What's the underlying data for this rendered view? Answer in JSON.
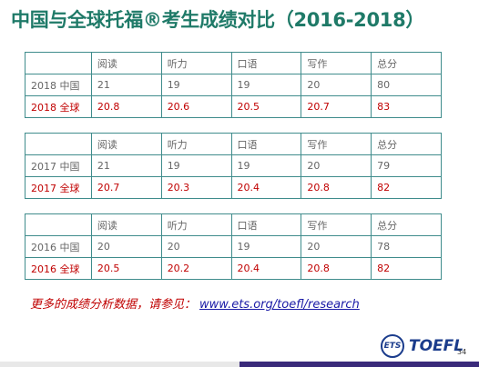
{
  "title": "中国与全球托福®考生成绩对比（2016-2018）",
  "tables": [
    {
      "header": [
        "阅读",
        "听力",
        "口语",
        "写作",
        "总分"
      ],
      "rows": [
        [
          "2018 中国",
          "21",
          "19",
          "19",
          "20",
          "80"
        ],
        [
          "2018 全球",
          "20.8",
          "20.6",
          "20.5",
          "20.7",
          "83"
        ]
      ]
    },
    {
      "header": [
        "阅读",
        "听力",
        "口语",
        "写作",
        "总分"
      ],
      "rows": [
        [
          "2017 中国",
          "21",
          "19",
          "19",
          "20",
          "79"
        ],
        [
          "2017 全球",
          "20.7",
          "20.3",
          "20.4",
          "20.8",
          "82"
        ]
      ]
    },
    {
      "header": [
        "阅读",
        "听力",
        "口语",
        "写作",
        "总分"
      ],
      "rows": [
        [
          "2016 中国",
          "20",
          "20",
          "19",
          "20",
          "78"
        ],
        [
          "2016 全球",
          "20.5",
          "20.2",
          "20.4",
          "20.8",
          "82"
        ]
      ]
    }
  ],
  "footer": {
    "note": "更多的成绩分析数据，请参见：",
    "link": "www.ets.org/toefl/research"
  },
  "logo": {
    "ets": "ETS",
    "toefl": "TOEFL"
  },
  "page_number": "34"
}
